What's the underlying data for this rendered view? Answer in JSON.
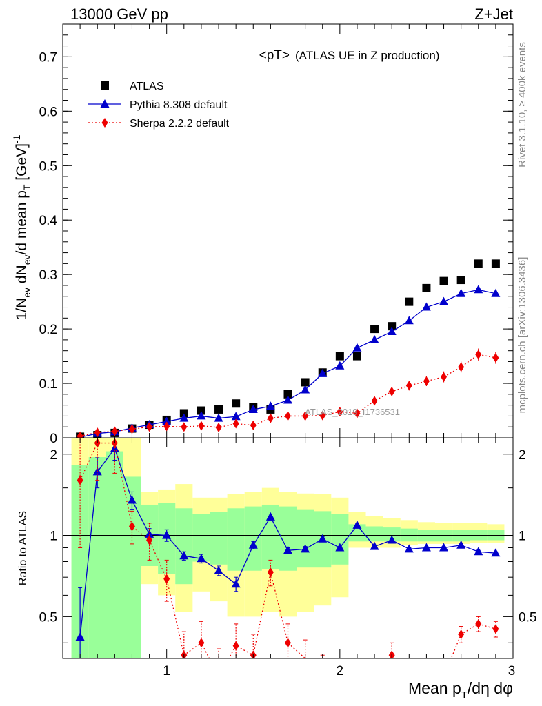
{
  "header": {
    "left": "13000 GeV pp",
    "right": "Z+Jet"
  },
  "plot_title": {
    "main": "<pT>",
    "sub": "(ATLAS UE in Z production)"
  },
  "axes": {
    "ylabel_top": "1/N_ev dN_ev/d mean p_T [GeV]^-1",
    "ylabel_bottom": "Ratio to ATLAS",
    "xlabel": "Mean p_T/dη dφ"
  },
  "side_text": {
    "rivet": "Rivet 3.1.10, ≥ 400k events",
    "mcplots": "mcplots.cern.ch [arXiv:1306.3436]"
  },
  "watermark": "ATLAS_2019_I1736531",
  "legend": [
    {
      "name": "ATLAS",
      "color": "#000000",
      "marker": "square"
    },
    {
      "name": "Pythia 8.308 default",
      "color": "#0000cc",
      "marker": "triangle"
    },
    {
      "name": "Sherpa 2.2.2 default",
      "color": "#ee0000",
      "marker": "diamond"
    }
  ],
  "chart_data": [
    {
      "type": "scatter",
      "panel": "main",
      "xlim": [
        0.4,
        3.0
      ],
      "ylim": [
        0,
        0.76
      ],
      "xticks": [
        "1",
        "2",
        "3"
      ],
      "yticks": [
        "0",
        "0.1",
        "0.2",
        "0.3",
        "0.4",
        "0.5",
        "0.6",
        "0.7"
      ],
      "x": [
        0.5,
        0.6,
        0.7,
        0.8,
        0.9,
        1.0,
        1.1,
        1.2,
        1.3,
        1.4,
        1.5,
        1.6,
        1.7,
        1.8,
        1.9,
        2.0,
        2.1,
        2.2,
        2.3,
        2.4,
        2.5,
        2.6,
        2.7,
        2.8,
        2.9
      ],
      "series": [
        {
          "name": "ATLAS",
          "color": "#000000",
          "values": [
            0.002,
            0.005,
            0.009,
            0.017,
            0.024,
            0.033,
            0.045,
            0.05,
            0.052,
            0.063,
            0.057,
            0.052,
            0.08,
            0.102,
            0.12,
            0.15,
            0.15,
            0.2,
            0.205,
            0.25,
            0.275,
            0.288,
            0.29,
            0.32,
            0.32
          ]
        },
        {
          "name": "Pythia 8.308 default",
          "color": "#0000cc",
          "values": [
            0.001,
            0.008,
            0.011,
            0.018,
            0.024,
            0.03,
            0.036,
            0.04,
            0.036,
            0.039,
            0.052,
            0.058,
            0.069,
            0.088,
            0.118,
            0.132,
            0.165,
            0.18,
            0.195,
            0.215,
            0.24,
            0.25,
            0.265,
            0.272,
            0.265
          ],
          "errors": [
            0.001,
            0.002,
            0.002,
            0.002,
            0.002,
            0.002,
            0.002,
            0.003,
            0.003,
            0.003,
            0.003,
            0.003,
            0.003,
            0.004,
            0.004,
            0.004,
            0.004,
            0.004,
            0.004,
            0.004,
            0.004,
            0.005,
            0.005,
            0.005,
            0.005
          ]
        },
        {
          "name": "Sherpa 2.2.2 default",
          "color": "#ee0000",
          "values": [
            0.003,
            0.01,
            0.012,
            0.016,
            0.02,
            0.021,
            0.02,
            0.022,
            0.019,
            0.026,
            0.023,
            0.036,
            0.04,
            0.04,
            0.041,
            0.048,
            0.045,
            0.068,
            0.085,
            0.096,
            0.104,
            0.112,
            0.13,
            0.153,
            0.147
          ],
          "errors": [
            0.002,
            0.005,
            0.006,
            0.006,
            0.006,
            0.006,
            0.005,
            0.006,
            0.006,
            0.007,
            0.006,
            0.007,
            0.007,
            0.007,
            0.007,
            0.007,
            0.007,
            0.008,
            0.008,
            0.009,
            0.009,
            0.01,
            0.01,
            0.011,
            0.011
          ]
        }
      ]
    },
    {
      "type": "line",
      "panel": "ratio",
      "xlim": [
        0.4,
        3.0
      ],
      "ylim": [
        0.35,
        2.3
      ],
      "log_scale": true,
      "xticks": [
        "1",
        "2",
        "3"
      ],
      "yticks": [
        "0.5",
        "1",
        "2"
      ],
      "x": [
        0.5,
        0.6,
        0.7,
        0.8,
        0.9,
        1.0,
        1.1,
        1.2,
        1.3,
        1.4,
        1.5,
        1.6,
        1.7,
        1.8,
        1.9,
        2.0,
        2.1,
        2.2,
        2.3,
        2.4,
        2.5,
        2.6,
        2.7,
        2.8,
        2.9
      ],
      "series": [
        {
          "name": "Pythia 8.308 default",
          "color": "#0000cc",
          "values": [
            0.42,
            1.72,
            2.1,
            1.35,
            1.01,
            1.0,
            0.84,
            0.82,
            0.74,
            0.66,
            0.92,
            1.17,
            0.88,
            0.89,
            0.97,
            0.9,
            1.09,
            0.91,
            0.96,
            0.89,
            0.9,
            0.9,
            0.92,
            0.87,
            0.86
          ],
          "errors": [
            0.22,
            0.22,
            0.2,
            0.1,
            0.05,
            0.05,
            0.03,
            0.03,
            0.03,
            0.04,
            0.03,
            0.03,
            0.02,
            0.02,
            0.02,
            0.01,
            0.02,
            0.01,
            0.01,
            0.01,
            0.01,
            0.01,
            0.01,
            0.01,
            0.01
          ]
        },
        {
          "name": "Sherpa 2.2.2 default",
          "color": "#ee0000",
          "values": [
            1.6,
            2.2,
            2.2,
            1.08,
            0.96,
            0.69,
            0.36,
            0.4,
            0.3,
            0.39,
            0.36,
            0.73,
            0.4,
            0.35,
            0.3,
            0.3,
            0.3,
            0.3,
            0.36,
            0.3,
            0.3,
            0.3,
            0.43,
            0.47,
            0.45
          ],
          "errors": [
            0.7,
            0.6,
            0.5,
            0.15,
            0.15,
            0.12,
            0.08,
            0.08,
            0.08,
            0.08,
            0.07,
            0.08,
            0.07,
            0.06,
            0.06,
            0.05,
            0.05,
            0.04,
            0.04,
            0.03,
            0.03,
            0.03,
            0.03,
            0.03,
            0.03
          ]
        }
      ],
      "bands": {
        "bin_edges": [
          0.45,
          0.55,
          0.65,
          0.75,
          0.85,
          0.95,
          1.05,
          1.15,
          1.25,
          1.35,
          1.45,
          1.55,
          1.65,
          1.75,
          1.85,
          1.95,
          2.05,
          2.15,
          2.25,
          2.35,
          2.45,
          2.55,
          2.65,
          2.75,
          2.85,
          2.95
        ],
        "yellow": {
          "color": "#ffff99",
          "lo": [
            0.3,
            0.3,
            0.3,
            0.3,
            0.66,
            0.6,
            0.52,
            0.62,
            0.57,
            0.5,
            0.5,
            0.52,
            0.5,
            0.52,
            0.55,
            0.59,
            0.9,
            0.9,
            0.9,
            0.92,
            0.93,
            0.93,
            0.93,
            0.94,
            0.94
          ],
          "hi": [
            2.3,
            2.3,
            2.3,
            2.3,
            1.45,
            1.48,
            1.55,
            1.38,
            1.38,
            1.42,
            1.45,
            1.5,
            1.45,
            1.43,
            1.42,
            1.38,
            1.22,
            1.18,
            1.16,
            1.14,
            1.12,
            1.11,
            1.11,
            1.11,
            1.1
          ]
        },
        "green": {
          "color": "#99ff99",
          "lo": [
            0.3,
            0.3,
            0.3,
            0.3,
            0.77,
            0.72,
            0.66,
            0.8,
            0.78,
            0.74,
            0.74,
            0.75,
            0.74,
            0.76,
            0.76,
            0.78,
            0.95,
            0.95,
            0.95,
            0.95,
            0.95,
            0.95,
            0.95,
            0.96,
            0.96
          ],
          "hi": [
            1.82,
            1.95,
            2.05,
            1.65,
            1.3,
            1.32,
            1.26,
            1.2,
            1.22,
            1.26,
            1.28,
            1.3,
            1.28,
            1.25,
            1.23,
            1.2,
            1.1,
            1.08,
            1.07,
            1.06,
            1.05,
            1.05,
            1.05,
            1.05,
            1.05
          ]
        }
      }
    }
  ]
}
